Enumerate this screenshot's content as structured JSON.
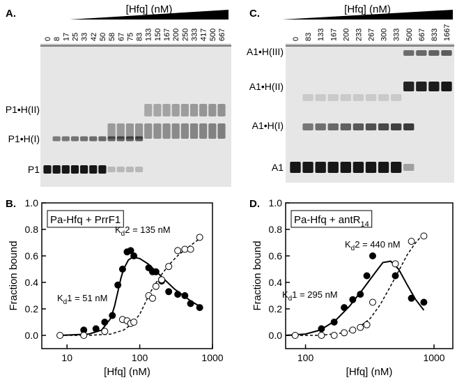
{
  "gels": [
    {
      "panel_label": "A.",
      "title": "[Hfq] (nM)",
      "lanes": [
        "0",
        "8",
        "17",
        "25",
        "33",
        "42",
        "50",
        "58",
        "67",
        "75",
        "83",
        "133",
        "150",
        "167",
        "200",
        "250",
        "333",
        "417",
        "500",
        "667"
      ],
      "bands": [
        "P1•H(II)",
        "P1•H(I)",
        "P1"
      ]
    },
    {
      "panel_label": "C.",
      "title": "[Hfq] (nM)",
      "lanes": [
        "0",
        "83",
        "133",
        "167",
        "200",
        "233",
        "267",
        "300",
        "333",
        "500",
        "667",
        "833",
        "1667"
      ],
      "bands": [
        "A1•H(III)",
        "A1•H(II)",
        "A1•H(I)",
        "A1"
      ]
    }
  ],
  "chart_data": [
    {
      "type": "scatter",
      "panel_label": "B.",
      "box_text": "Pa-Hfq + PrrF1",
      "xlabel": "[Hfq] (nM)",
      "ylabel": "Fraction bound",
      "log_x": true,
      "xlim": [
        4.5,
        1000
      ],
      "xticks": [
        10,
        100,
        1000
      ],
      "ylim": [
        -0.1,
        1.0
      ],
      "yticks": [
        {
          "value": 0,
          "label": "0.0"
        },
        {
          "value": 0.2,
          "label": "0.2"
        },
        {
          "value": 0.4,
          "label": "0.4"
        },
        {
          "value": 0.6,
          "label": "0.6"
        },
        {
          "value": 0.8,
          "label": "0.8"
        },
        {
          "value": 1.0,
          "label": "1.0"
        }
      ],
      "annotations": [
        {
          "main": "K",
          "sub": "d",
          "rest": "2 = 135 nM"
        },
        {
          "main": "K",
          "sub": "d",
          "rest": "1 = 51 nM"
        }
      ],
      "series": [
        {
          "marker": "filled",
          "color": "#000000",
          "x": [
            17,
            25,
            33,
            42,
            50,
            58,
            67,
            75,
            83,
            133,
            150,
            167,
            200,
            250,
            333,
            417,
            500,
            667
          ],
          "values": [
            0.04,
            0.05,
            0.1,
            0.15,
            0.38,
            0.5,
            0.63,
            0.64,
            0.6,
            0.51,
            0.48,
            0.48,
            0.41,
            0.33,
            0.31,
            0.3,
            0.24,
            0.21
          ]
        },
        {
          "marker": "open",
          "color": "#000000",
          "x": [
            8,
            17,
            33,
            58,
            67,
            75,
            83,
            133,
            150,
            167,
            200,
            250,
            333,
            417,
            500,
            667
          ],
          "values": [
            0,
            0,
            0.03,
            0.12,
            0.11,
            0.09,
            0.1,
            0.3,
            0.28,
            0.37,
            0.42,
            0.52,
            0.64,
            0.65,
            0.65,
            0.74
          ]
        },
        {
          "marker": "line",
          "dash": false,
          "color": "#000000",
          "x": [
            8,
            20,
            30,
            40,
            45,
            50,
            55,
            60,
            70,
            80,
            100,
            130,
            170,
            220,
            300,
            400,
            500,
            667
          ],
          "values": [
            0,
            0.01,
            0.04,
            0.13,
            0.22,
            0.33,
            0.43,
            0.5,
            0.57,
            0.59,
            0.58,
            0.54,
            0.48,
            0.42,
            0.35,
            0.3,
            0.26,
            0.22
          ]
        },
        {
          "marker": "line",
          "dash": true,
          "color": "#000000",
          "x": [
            8,
            20,
            40,
            60,
            80,
            100,
            120,
            135,
            160,
            200,
            250,
            330,
            450,
            667
          ],
          "values": [
            0,
            0,
            0.01,
            0.04,
            0.09,
            0.16,
            0.25,
            0.31,
            0.38,
            0.46,
            0.53,
            0.6,
            0.66,
            0.73
          ]
        }
      ]
    },
    {
      "type": "scatter",
      "panel_label": "D.",
      "box_text": "Pa-Hfq + antR",
      "box_sub": "14",
      "xlabel": "[Hfq] (nM)",
      "ylabel": "Fraction bound",
      "log_x": true,
      "xlim": [
        70,
        1400
      ],
      "xticks": [
        100,
        1000
      ],
      "ylim": [
        -0.1,
        1.0
      ],
      "yticks": [
        {
          "value": 0,
          "label": "0.0"
        },
        {
          "value": 0.2,
          "label": "0.2"
        },
        {
          "value": 0.4,
          "label": "0.4"
        },
        {
          "value": 0.6,
          "label": "0.6"
        },
        {
          "value": 0.8,
          "label": "0.8"
        },
        {
          "value": 1.0,
          "label": "1.0"
        }
      ],
      "annotations": [
        {
          "main": "K",
          "sub": "d",
          "rest": "2 = 440 nM"
        },
        {
          "main": "K",
          "sub": "d",
          "rest": "1 = 295 nM"
        }
      ],
      "series": [
        {
          "marker": "filled",
          "color": "#000000",
          "x": [
            133,
            167,
            200,
            233,
            267,
            300,
            333,
            500,
            667,
            833
          ],
          "values": [
            0.05,
            0.1,
            0.21,
            0.27,
            0.31,
            0.45,
            0.6,
            0.45,
            0.28,
            0.25
          ]
        },
        {
          "marker": "open",
          "color": "#000000",
          "x": [
            83,
            133,
            167,
            200,
            233,
            267,
            300,
            333,
            500,
            667,
            833
          ],
          "values": [
            0,
            0,
            0,
            0.02,
            0.04,
            0.06,
            0.08,
            0.25,
            0.54,
            0.71,
            0.75
          ]
        },
        {
          "marker": "line",
          "dash": false,
          "color": "#000000",
          "x": [
            70,
            100,
            130,
            170,
            220,
            280,
            340,
            400,
            460,
            530,
            620,
            720,
            833
          ],
          "values": [
            0,
            0.01,
            0.04,
            0.11,
            0.22,
            0.35,
            0.46,
            0.55,
            0.56,
            0.5,
            0.38,
            0.27,
            0.19
          ]
        },
        {
          "marker": "line",
          "dash": true,
          "color": "#000000",
          "x": [
            70,
            130,
            200,
            260,
            320,
            380,
            440,
            520,
            620,
            720,
            833
          ],
          "values": [
            0,
            0,
            0.02,
            0.06,
            0.13,
            0.23,
            0.34,
            0.47,
            0.61,
            0.7,
            0.77
          ]
        }
      ]
    }
  ]
}
